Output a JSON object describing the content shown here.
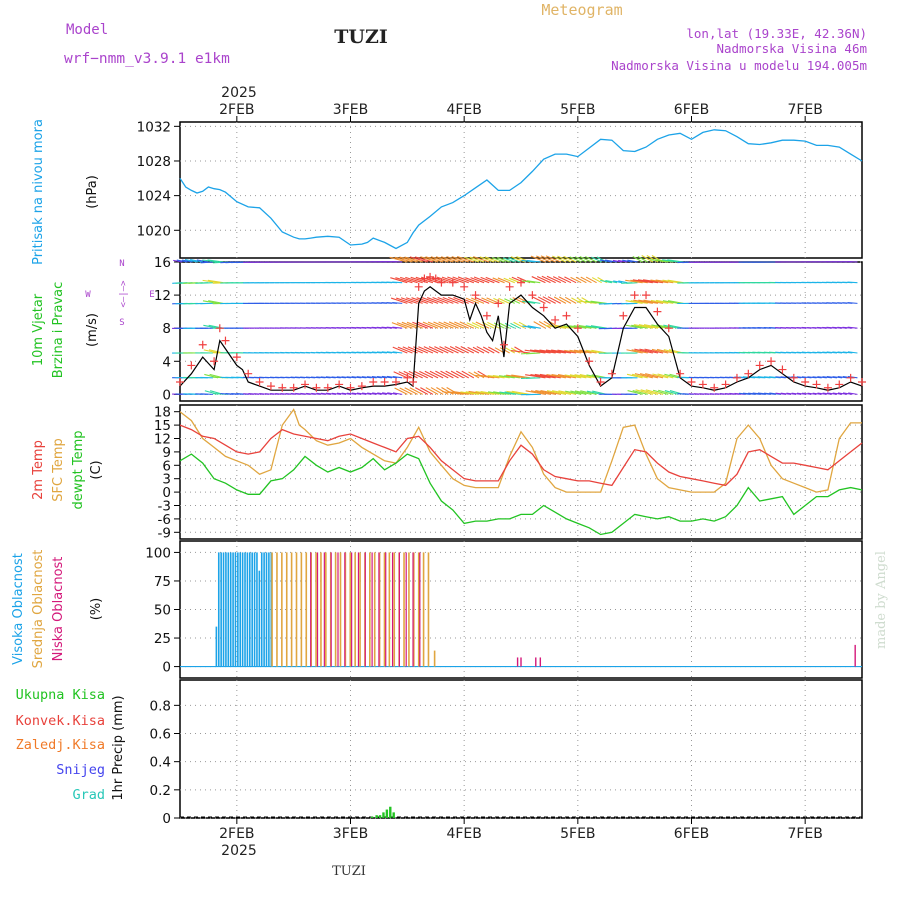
{
  "header": {
    "model_label": "Model",
    "model_name": "wrf−nmm_v3.9.1 e1km",
    "station": "TUZI",
    "title": "Meteogram",
    "coords": "lon,lat (19.33E, 42.36N)",
    "elevation": "Nadmorska Visina 46m",
    "model_elevation": "Nadmorska Visina u modelu 194.005m"
  },
  "footer": {
    "station": "TUZI",
    "credit": "made by Angel"
  },
  "colors": {
    "pressure": "#1ca3e8",
    "temp2m": "#e8423c",
    "sfc_temp": "#e0a640",
    "dewpoint": "#22c322",
    "high_cloud": "#1ca3e8",
    "mid_cloud": "#e0a640",
    "low_cloud": "#d4187a",
    "total_precip": "#22c322",
    "convective": "#e8423c",
    "frozen": "#f07a28",
    "snow": "#4444ee",
    "graupel": "#28c8b8",
    "wind_speed": "#000000",
    "gust": "#f04040",
    "axis_label_purple": "#aa44cc",
    "credit": "#cfdccf"
  },
  "chart_data": [
    {
      "id": "pressure",
      "type": "line",
      "top_year": "2025",
      "top_ticks": [
        "2FEB",
        "3FEB",
        "4FEB",
        "5FEB",
        "6FEB",
        "7FEB"
      ],
      "ylabel": "Pritisak na nivou mora",
      "unit": "(hPa)",
      "yticks": [
        1020,
        1024,
        1028,
        1032
      ],
      "ylim": [
        1016.8,
        1032.5
      ],
      "xlim_days": [
        1.5,
        7.5
      ],
      "series": [
        {
          "x": [
            1.5,
            1.55,
            1.6,
            1.65,
            1.7,
            1.75,
            1.8,
            1.85,
            1.9,
            2.0,
            2.1,
            2.2,
            2.3,
            2.4,
            2.5,
            2.55,
            2.6,
            2.65,
            2.7,
            2.8,
            2.9,
            3.0,
            3.1,
            3.15,
            3.2,
            3.3,
            3.4,
            3.5,
            3.55,
            3.6,
            3.7,
            3.8,
            3.9,
            4.0,
            4.1,
            4.2,
            4.3,
            4.4,
            4.5,
            4.6,
            4.7,
            4.8,
            4.9,
            5.0,
            5.1,
            5.2,
            5.3,
            5.4,
            5.5,
            5.6,
            5.7,
            5.8,
            5.9,
            6.0,
            6.1,
            6.2,
            6.3,
            6.4,
            6.5,
            6.6,
            6.7,
            6.8,
            6.9,
            7.0,
            7.1,
            7.2,
            7.3,
            7.4,
            7.5
          ],
          "y": [
            1026.0,
            1025.0,
            1024.6,
            1024.3,
            1024.5,
            1025.0,
            1024.8,
            1024.7,
            1024.4,
            1023.3,
            1022.7,
            1022.6,
            1021.4,
            1019.8,
            1019.2,
            1019.0,
            1019.0,
            1019.1,
            1019.2,
            1019.3,
            1019.2,
            1018.3,
            1018.4,
            1018.6,
            1019.1,
            1018.6,
            1017.9,
            1018.6,
            1019.7,
            1020.6,
            1021.6,
            1022.7,
            1023.2,
            1024.0,
            1024.9,
            1025.8,
            1024.6,
            1024.6,
            1025.5,
            1026.8,
            1028.2,
            1028.8,
            1028.8,
            1028.5,
            1029.5,
            1030.5,
            1030.4,
            1029.2,
            1029.1,
            1029.6,
            1030.5,
            1031.0,
            1031.2,
            1030.5,
            1031.3,
            1031.6,
            1031.5,
            1030.8,
            1030.0,
            1029.9,
            1030.1,
            1030.4,
            1030.4,
            1030.3,
            1029.8,
            1029.8,
            1029.6,
            1028.8,
            1028.0
          ]
        }
      ]
    },
    {
      "id": "wind",
      "type": "line",
      "ylabel": "10m Vjetar",
      "ylabel2": "Brzina i Pravac",
      "unit": "(m/s)",
      "compass": {
        "n": "N",
        "s": "S",
        "e": "E",
        "w": "W"
      },
      "yticks": [
        0,
        4,
        8,
        12,
        16
      ],
      "ylim": [
        -0.8,
        16
      ],
      "xlim_days": [
        1.5,
        7.5
      ],
      "series": [
        {
          "name": "speed",
          "x": [
            1.5,
            1.6,
            1.7,
            1.8,
            1.85,
            1.9,
            2.0,
            2.05,
            2.1,
            2.2,
            2.3,
            2.4,
            2.5,
            2.6,
            2.7,
            2.8,
            2.9,
            3.0,
            3.1,
            3.2,
            3.3,
            3.4,
            3.5,
            3.55,
            3.6,
            3.65,
            3.7,
            3.75,
            3.8,
            3.9,
            4.0,
            4.05,
            4.1,
            4.15,
            4.2,
            4.25,
            4.3,
            4.35,
            4.4,
            4.5,
            4.6,
            4.7,
            4.8,
            4.9,
            5.0,
            5.1,
            5.2,
            5.3,
            5.4,
            5.5,
            5.6,
            5.7,
            5.8,
            5.9,
            6.0,
            6.1,
            6.2,
            6.3,
            6.4,
            6.5,
            6.6,
            6.7,
            6.8,
            6.9,
            7.0,
            7.1,
            7.2,
            7.3,
            7.4,
            7.5
          ],
          "y": [
            1.0,
            2.5,
            4.5,
            3.0,
            6.5,
            5.5,
            3.5,
            3.0,
            1.5,
            1.0,
            0.5,
            0.5,
            0.5,
            1.0,
            0.5,
            0.5,
            1.0,
            0.5,
            0.8,
            1.0,
            1.0,
            1.2,
            1.5,
            1.0,
            11.0,
            12.5,
            13.0,
            12.5,
            12.0,
            12.0,
            11.5,
            9.0,
            11.0,
            9.5,
            7.5,
            6.5,
            9.5,
            4.5,
            11.0,
            12.0,
            10.5,
            9.5,
            8.0,
            8.5,
            7.0,
            3.5,
            1.0,
            2.0,
            8.0,
            10.5,
            10.5,
            8.5,
            7.0,
            2.0,
            1.0,
            0.8,
            0.5,
            0.8,
            1.5,
            2.0,
            3.0,
            3.5,
            2.5,
            1.5,
            1.0,
            0.8,
            0.5,
            0.8,
            1.5,
            1.0
          ]
        },
        {
          "name": "gust",
          "x": [
            1.5,
            1.6,
            1.7,
            1.8,
            1.85,
            1.9,
            2.0,
            2.1,
            2.2,
            2.3,
            2.4,
            2.5,
            2.6,
            2.7,
            2.8,
            2.9,
            3.0,
            3.1,
            3.2,
            3.3,
            3.4,
            3.5,
            3.55,
            3.6,
            3.65,
            3.7,
            3.75,
            3.8,
            3.9,
            4.0,
            4.1,
            4.2,
            4.3,
            4.35,
            4.4,
            4.5,
            4.6,
            4.7,
            4.8,
            4.9,
            5.0,
            5.1,
            5.2,
            5.3,
            5.4,
            5.5,
            5.6,
            5.7,
            5.8,
            5.9,
            6.0,
            6.1,
            6.2,
            6.3,
            6.4,
            6.5,
            6.6,
            6.7,
            6.8,
            6.9,
            7.0,
            7.1,
            7.2,
            7.3,
            7.4,
            7.5
          ],
          "y": [
            1.5,
            3.5,
            6.0,
            4.0,
            8.0,
            6.5,
            4.5,
            2.5,
            1.5,
            1.0,
            0.8,
            0.8,
            1.2,
            0.8,
            0.8,
            1.2,
            0.8,
            1.0,
            1.5,
            1.5,
            1.5,
            2.0,
            1.5,
            13.0,
            14.0,
            14.2,
            14.0,
            13.5,
            13.5,
            13.0,
            12.0,
            9.5,
            11.0,
            6.0,
            13.0,
            13.5,
            12.0,
            10.5,
            9.0,
            9.5,
            8.0,
            4.0,
            1.5,
            2.5,
            9.5,
            12.0,
            12.0,
            10.0,
            8.0,
            2.5,
            1.5,
            1.2,
            0.8,
            1.2,
            2.0,
            2.5,
            3.5,
            4.0,
            3.0,
            2.0,
            1.5,
            1.2,
            0.8,
            1.2,
            2.0,
            1.5
          ]
        }
      ],
      "barb_rows_ms": [
        0,
        2,
        5,
        8,
        11,
        13.5,
        16
      ]
    },
    {
      "id": "temperature",
      "type": "line",
      "ylabels": [
        "2m Temp",
        "SFC Temp",
        "dewpt Temp"
      ],
      "unit": "(C)",
      "yticks": [
        -9,
        -6,
        -3,
        0,
        3,
        6,
        9,
        12,
        15,
        18
      ],
      "ylim": [
        -10.5,
        19.5
      ],
      "xlim_days": [
        1.5,
        7.5
      ],
      "series": [
        {
          "name": "2m Temp",
          "x": [
            1.5,
            1.6,
            1.7,
            1.8,
            1.9,
            2.0,
            2.1,
            2.2,
            2.3,
            2.4,
            2.5,
            2.6,
            2.7,
            2.8,
            2.9,
            3.0,
            3.1,
            3.2,
            3.3,
            3.4,
            3.5,
            3.6,
            3.7,
            3.8,
            3.9,
            4.0,
            4.1,
            4.2,
            4.3,
            4.4,
            4.5,
            4.6,
            4.7,
            4.8,
            4.9,
            5.0,
            5.1,
            5.2,
            5.3,
            5.4,
            5.5,
            5.6,
            5.7,
            5.8,
            5.9,
            6.0,
            6.1,
            6.2,
            6.3,
            6.4,
            6.5,
            6.6,
            6.7,
            6.8,
            6.9,
            7.0,
            7.1,
            7.2,
            7.3,
            7.4,
            7.5
          ],
          "y": [
            15.0,
            14.0,
            12.5,
            12.0,
            10.5,
            9.0,
            8.5,
            9.0,
            12.0,
            14.0,
            13.0,
            12.5,
            12.0,
            11.5,
            12.5,
            13.0,
            12.0,
            11.0,
            10.0,
            9.0,
            12.0,
            12.5,
            10.0,
            7.0,
            5.0,
            3.0,
            2.5,
            2.5,
            2.5,
            7.0,
            10.5,
            8.5,
            5.0,
            3.5,
            3.0,
            2.5,
            2.5,
            2.0,
            1.5,
            5.5,
            9.5,
            9.0,
            6.5,
            4.5,
            3.5,
            3.0,
            2.5,
            2.0,
            1.5,
            4.0,
            9.0,
            9.5,
            8.0,
            6.5,
            6.5,
            6.0,
            5.5,
            5.0,
            7.0,
            9.0,
            11.0
          ]
        },
        {
          "name": "SFC Temp",
          "x": [
            1.5,
            1.6,
            1.7,
            1.8,
            1.9,
            2.0,
            2.1,
            2.2,
            2.3,
            2.4,
            2.5,
            2.55,
            2.6,
            2.7,
            2.8,
            2.9,
            3.0,
            3.1,
            3.2,
            3.3,
            3.4,
            3.5,
            3.6,
            3.7,
            3.8,
            3.9,
            4.0,
            4.1,
            4.2,
            4.3,
            4.4,
            4.5,
            4.6,
            4.7,
            4.8,
            4.9,
            5.0,
            5.1,
            5.2,
            5.3,
            5.4,
            5.5,
            5.6,
            5.7,
            5.8,
            5.9,
            6.0,
            6.1,
            6.2,
            6.3,
            6.4,
            6.5,
            6.6,
            6.7,
            6.8,
            6.9,
            7.0,
            7.1,
            7.2,
            7.3,
            7.4,
            7.5
          ],
          "y": [
            18.0,
            16.0,
            12.0,
            10.0,
            8.0,
            7.0,
            6.0,
            4.0,
            5.0,
            15.0,
            18.5,
            15.0,
            14.0,
            11.5,
            10.5,
            11.0,
            12.0,
            10.0,
            8.5,
            7.0,
            6.5,
            10.0,
            14.5,
            9.0,
            6.0,
            3.0,
            1.5,
            1.0,
            1.0,
            1.0,
            8.0,
            13.5,
            10.0,
            4.0,
            1.0,
            0.0,
            0.0,
            0.0,
            0.0,
            7.0,
            14.5,
            15.0,
            8.5,
            3.0,
            1.0,
            0.5,
            0.0,
            0.0,
            0.0,
            2.0,
            12.0,
            15.0,
            12.0,
            6.0,
            3.0,
            2.0,
            1.0,
            0.0,
            0.5,
            12.0,
            15.5,
            15.5
          ]
        },
        {
          "name": "dewpt Temp",
          "x": [
            1.5,
            1.6,
            1.7,
            1.8,
            1.9,
            2.0,
            2.1,
            2.2,
            2.3,
            2.4,
            2.5,
            2.6,
            2.7,
            2.8,
            2.9,
            3.0,
            3.1,
            3.2,
            3.3,
            3.4,
            3.5,
            3.6,
            3.7,
            3.8,
            3.9,
            4.0,
            4.1,
            4.2,
            4.3,
            4.4,
            4.5,
            4.6,
            4.7,
            4.8,
            4.9,
            5.0,
            5.1,
            5.2,
            5.3,
            5.4,
            5.5,
            5.6,
            5.7,
            5.8,
            5.9,
            6.0,
            6.1,
            6.2,
            6.3,
            6.4,
            6.5,
            6.6,
            6.7,
            6.8,
            6.9,
            7.0,
            7.1,
            7.2,
            7.3,
            7.4,
            7.5
          ],
          "y": [
            7.0,
            8.5,
            6.5,
            3.0,
            2.0,
            0.5,
            -0.5,
            -0.5,
            2.5,
            3.0,
            5.0,
            8.0,
            6.0,
            4.5,
            5.5,
            4.5,
            5.5,
            7.5,
            5.0,
            6.5,
            8.5,
            7.5,
            2.0,
            -2.0,
            -4.0,
            -7.0,
            -6.5,
            -6.5,
            -6.0,
            -6.0,
            -5.0,
            -5.0,
            -3.0,
            -4.5,
            -6.0,
            -7.0,
            -8.0,
            -9.5,
            -9.0,
            -7.0,
            -5.0,
            -5.5,
            -6.0,
            -5.5,
            -6.5,
            -6.5,
            -6.0,
            -6.5,
            -5.5,
            -3.0,
            1.0,
            -2.0,
            -1.5,
            -1.0,
            -5.0,
            -3.0,
            -1.0,
            -1.0,
            0.5,
            1.0,
            0.5
          ]
        }
      ]
    },
    {
      "id": "cloud",
      "type": "bar",
      "ylabels": [
        "Visoka Oblacnost",
        "Srednja Oblacnost",
        "Niska Oblacnost"
      ],
      "unit": "(%)",
      "yticks": [
        0,
        25,
        50,
        75,
        100
      ],
      "ylim": [
        -10,
        110
      ],
      "xlim_days": [
        1.5,
        7.5
      ],
      "series": [
        {
          "name": "Visoka Oblacnost",
          "x_start": 1.82,
          "x_end": 2.31,
          "step": 0.021,
          "overrides": [
            {
              "x": 1.82,
              "v": 35
            },
            {
              "x": 2.2,
              "v": 84
            }
          ]
        },
        {
          "name": "Srednja Oblacnost",
          "x_start": 2.31,
          "x_end": 3.7,
          "step": 0.043,
          "tail": [
            {
              "x": 3.74,
              "v": 14
            }
          ]
        },
        {
          "name": "Niska Oblacnost",
          "x_start": 2.65,
          "x_end": 3.66,
          "step": 0.06,
          "extra": [
            {
              "x": 4.47,
              "v": 8
            },
            {
              "x": 4.5,
              "v": 8
            },
            {
              "x": 4.63,
              "v": 8
            },
            {
              "x": 4.67,
              "v": 8
            },
            {
              "x": 7.44,
              "v": 19
            }
          ]
        }
      ]
    },
    {
      "id": "precip",
      "type": "bar",
      "legend": [
        "Ukupna Kisa",
        "Konvek.Kisa",
        "Zaledj.Kisa",
        "Snijeg",
        "Grad"
      ],
      "ylabel": "1hr Precip (mm)",
      "yticks": [
        0.0,
        0.2,
        0.4,
        0.6,
        0.8
      ],
      "ytick_labels": [
        "0",
        "0.2",
        "0.4",
        "0.6",
        "0.8"
      ],
      "ylim": [
        0,
        0.98
      ],
      "xlim_days": [
        1.5,
        7.5
      ],
      "bottom_ticks": [
        "2FEB",
        "3FEB",
        "4FEB",
        "5FEB",
        "6FEB",
        "7FEB"
      ],
      "bottom_year": "2025",
      "series": [
        {
          "name": "Ukupna Kisa",
          "x": [
            3.19,
            3.23,
            3.26,
            3.29,
            3.32,
            3.35,
            3.38
          ],
          "y": [
            0.01,
            0.02,
            0.02,
            0.04,
            0.06,
            0.08,
            0.04
          ]
        }
      ]
    }
  ]
}
